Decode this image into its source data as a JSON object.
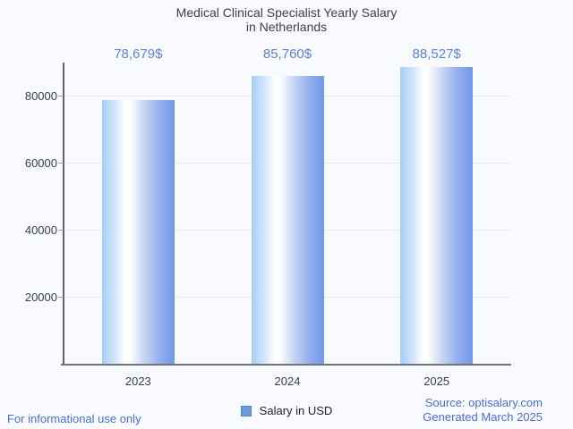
{
  "chart_data": {
    "type": "bar",
    "title": "Medical Clinical Specialist Yearly Salary in Netherlands",
    "title_lines": [
      "Medical Clinical Specialist Yearly Salary",
      "in Netherlands"
    ],
    "categories": [
      "2023",
      "2024",
      "2025"
    ],
    "values": [
      78679,
      85760,
      88527
    ],
    "value_labels": [
      "78,679$",
      "85,760$",
      "88,527$"
    ],
    "series": [
      {
        "name": "Salary in USD",
        "values": [
          78679,
          85760,
          88527
        ]
      }
    ],
    "xlabel": "",
    "ylabel": "",
    "ylim": [
      0,
      90000
    ],
    "yticks": [
      20000,
      40000,
      60000,
      80000
    ],
    "ytick_labels": [
      "20000",
      "40000",
      "60000",
      "80000"
    ],
    "grid": true,
    "legend_position": "bottom",
    "colors": {
      "bar_gradient_left": "#a5cdf8",
      "bar_gradient_mid": "#ffffff",
      "bar_gradient_right": "#6f99e8",
      "annotation_text": "#5b82d8",
      "legend_swatch": "#6d9ae1",
      "title_text": "#404040",
      "axis_text": "#3c4043",
      "footer_text": "#4a70d6",
      "gridline": "#e6e9ee",
      "axis_line": "#757575",
      "background": "#f8fafd"
    }
  },
  "footer": {
    "left": "For informational use only",
    "source": "Source: optisalary.com",
    "generated": "Generated March 2025"
  }
}
